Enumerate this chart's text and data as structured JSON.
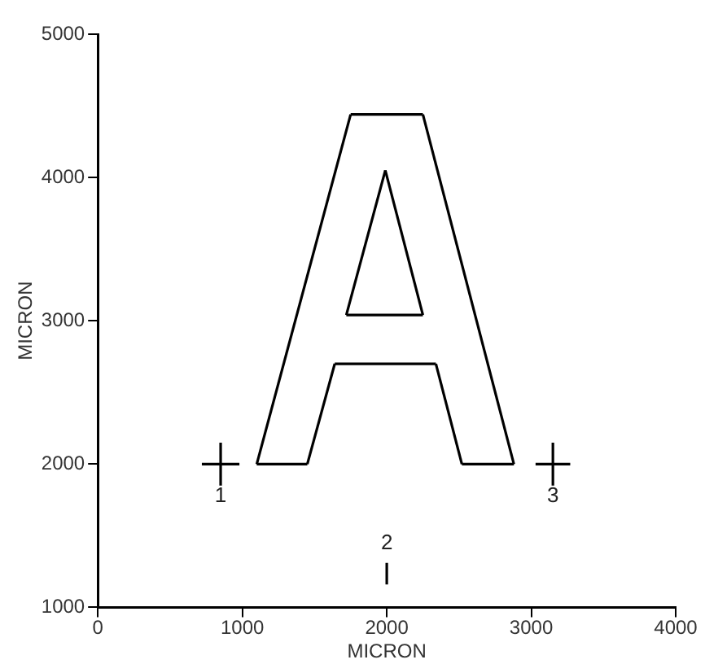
{
  "chart_data": {
    "type": "line",
    "xlabel": "MICRON",
    "ylabel": "MICRON",
    "xlim": [
      0,
      4000
    ],
    "xticks": [
      0,
      1000,
      2000,
      3000,
      4000
    ],
    "ylim": [
      1000,
      5000
    ],
    "yticks": [
      1000,
      2000,
      3000,
      4000,
      5000
    ],
    "grid": false,
    "legend": false,
    "marker": "none",
    "line_style": "solid",
    "series": [
      {
        "color": "#000000",
        "x": [
          1100,
          1750
        ],
        "values": [
          2000,
          4440
        ]
      },
      {
        "color": "#000000",
        "x": [
          1750,
          2250
        ],
        "values": [
          4440,
          4440
        ]
      },
      {
        "color": "#000000",
        "x": [
          2250,
          2880
        ],
        "values": [
          4440,
          2000
        ]
      },
      {
        "color": "#000000",
        "x": [
          2520,
          2880
        ],
        "values": [
          2000,
          2000
        ]
      },
      {
        "color": "#000000",
        "x": [
          2340,
          2520
        ],
        "values": [
          2700,
          2000
        ]
      },
      {
        "color": "#000000",
        "x": [
          1640,
          2340
        ],
        "values": [
          2700,
          2700
        ]
      },
      {
        "color": "#000000",
        "x": [
          1450,
          1640
        ],
        "values": [
          2000,
          2700
        ]
      },
      {
        "color": "#000000",
        "x": [
          1100,
          1450
        ],
        "values": [
          2000,
          2000
        ]
      },
      {
        "color": "#000000",
        "x": [
          1720,
          1990
        ],
        "values": [
          3040,
          4050
        ]
      },
      {
        "color": "#000000",
        "x": [
          1990,
          2250
        ],
        "values": [
          4050,
          3040
        ]
      },
      {
        "color": "#000000",
        "x": [
          1720,
          2250
        ],
        "values": [
          3040,
          3040
        ]
      },
      {
        "color": "#000000",
        "x": [
          720,
          980
        ],
        "values": [
          2000,
          2000
        ]
      },
      {
        "color": "#000000",
        "x": [
          850,
          850
        ],
        "values": [
          1850,
          2150
        ]
      },
      {
        "color": "#000000",
        "x": [
          3030,
          3270
        ],
        "values": [
          2000,
          2000
        ]
      },
      {
        "color": "#000000",
        "x": [
          3150,
          3150
        ],
        "values": [
          1850,
          2150
        ]
      },
      {
        "color": "#000000",
        "x": [
          2000,
          2000
        ],
        "values": [
          1160,
          1310
        ]
      }
    ],
    "annotations": [
      {
        "text": "1",
        "x": 850,
        "y": 2000
      },
      {
        "text": "2",
        "x": 2000,
        "y": 1310
      },
      {
        "text": "3",
        "x": 3150,
        "y": 2000
      }
    ]
  }
}
